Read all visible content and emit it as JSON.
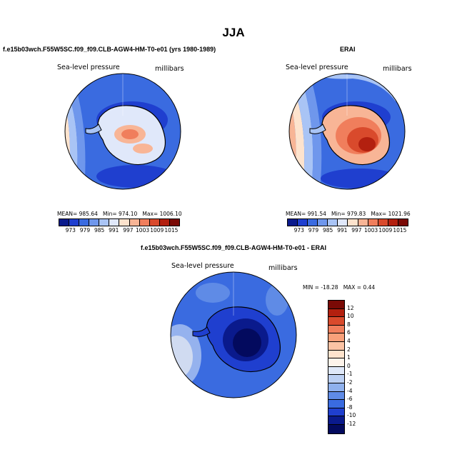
{
  "figure": {
    "season": "JJA",
    "model_title": "f.e15b03wch.F55W5SC.f09_f09.CLB-AGW4-HM-T0-e01 (yrs 1980-1989)",
    "obs_title": "ERAI",
    "diff_title": "f.e15b03wch.F55W5SC.f09_f09.CLB-AGW4-HM-T0-e01 - ERAI"
  },
  "panels": {
    "model": {
      "variable": "Sea-level pressure",
      "units": "millibars",
      "mean": "MEAN= 985.64",
      "min": "Min= 974.10",
      "max": "Max= 1006.10"
    },
    "obs": {
      "variable": "Sea-level pressure",
      "units": "millibars",
      "mean": "MEAN= 991.54",
      "min": "Min= 979.83",
      "max": "Max= 1021.96"
    },
    "diff": {
      "variable": "Sea-level pressure",
      "units": "millibars",
      "min_label": "MIN = -18.28",
      "max_label": "MAX =   0.44"
    }
  },
  "chart_data": [
    {
      "type": "heatmap",
      "title": "f.e15b03wch.F55W5SC.f09_f09.CLB-AGW4-HM-T0-e01 (yrs 1980-1989)",
      "projection": "south polar stereographic",
      "variable": "Sea-level pressure",
      "units": "millibars",
      "stats": {
        "mean": 985.64,
        "min": 974.1,
        "max": 1006.1
      },
      "levels": [
        973,
        979,
        985,
        991,
        997,
        1003,
        1009,
        1015
      ],
      "colors": [
        "#0a1a8c",
        "#1f3fcf",
        "#3a6be0",
        "#6f97ec",
        "#a9c4f5",
        "#e0e8fa",
        "#fde3cd",
        "#f8b596",
        "#f07e5c",
        "#d94a2c",
        "#b3200f",
        "#7a0a06"
      ]
    },
    {
      "type": "heatmap",
      "title": "ERAI",
      "projection": "south polar stereographic",
      "variable": "Sea-level pressure",
      "units": "millibars",
      "stats": {
        "mean": 991.54,
        "min": 979.83,
        "max": 1021.96
      },
      "levels": [
        973,
        979,
        985,
        991,
        997,
        1003,
        1009,
        1015
      ],
      "colors": [
        "#0a1a8c",
        "#1f3fcf",
        "#3a6be0",
        "#6f97ec",
        "#a9c4f5",
        "#e0e8fa",
        "#fde3cd",
        "#f8b596",
        "#f07e5c",
        "#d94a2c",
        "#b3200f",
        "#7a0a06"
      ]
    },
    {
      "type": "heatmap",
      "title": "f.e15b03wch.F55W5SC.f09_f09.CLB-AGW4-HM-T0-e01 - ERAI",
      "projection": "south polar stereographic",
      "variable": "Sea-level pressure",
      "units": "millibars",
      "stats": {
        "min": -18.28,
        "max": 0.44
      },
      "levels": [
        12,
        10,
        8,
        6,
        4,
        2,
        1,
        0,
        -1,
        -2,
        -4,
        -6,
        -8,
        -10,
        -12
      ],
      "colors": [
        "#7a0a06",
        "#b3200f",
        "#d94a2c",
        "#f07e5c",
        "#f8a07a",
        "#fbc3a4",
        "#fde3cd",
        "#fdf3ea",
        "#dfe8f8",
        "#bcd0f3",
        "#8fb1ee",
        "#5f8be6",
        "#3a6be0",
        "#1f3fcf",
        "#0a1a8c",
        "#030a5e"
      ]
    }
  ]
}
